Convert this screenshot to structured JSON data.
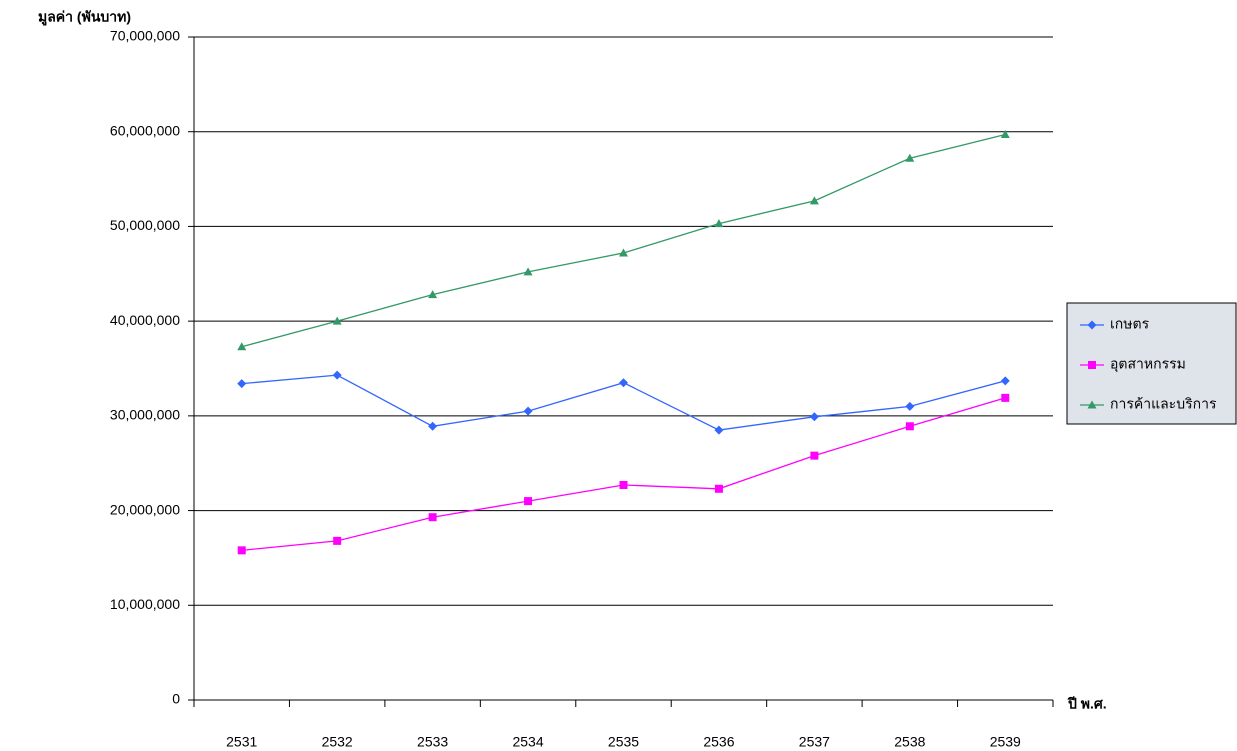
{
  "chart_data": {
    "type": "line",
    "y_label": "มูลค่า (พันบาท)",
    "x_label": "ปี พ.ศ.",
    "categories": [
      "2531",
      "2532",
      "2533",
      "2534",
      "2535",
      "2536",
      "2537",
      "2538",
      "2539"
    ],
    "series": [
      {
        "name": "เกษตร",
        "color": "#3366ff",
        "marker": "diamond",
        "values": [
          33400000,
          34300000,
          28900000,
          30500000,
          33500000,
          28500000,
          29900000,
          31000000,
          33700000
        ]
      },
      {
        "name": "อุตสาหกรรม",
        "color": "#ff00ff",
        "marker": "square",
        "values": [
          15800000,
          16800000,
          19300000,
          21000000,
          22700000,
          22300000,
          25800000,
          28900000,
          31900000
        ]
      },
      {
        "name": "การค้าและบริการ",
        "color": "#339966",
        "marker": "triangle",
        "values": [
          37300000,
          40000000,
          42800000,
          45200000,
          47200000,
          50300000,
          52700000,
          57200000,
          59700000
        ]
      }
    ],
    "ylim": [
      0,
      70000000
    ],
    "yticks": [
      0,
      {
        "value": 10000000,
        "label": "10,000,000"
      },
      {
        "value": 20000000,
        "label": "20,000,000"
      },
      {
        "value": 30000000,
        "label": "30,000,000"
      },
      {
        "value": 40000000,
        "label": "40,000,000"
      },
      {
        "value": 50000000,
        "label": "50,000,000"
      },
      {
        "value": 60000000,
        "label": "60,000,000"
      },
      {
        "value": 70000000,
        "label": "70,000,000"
      }
    ],
    "grid": true,
    "legend": "right"
  }
}
